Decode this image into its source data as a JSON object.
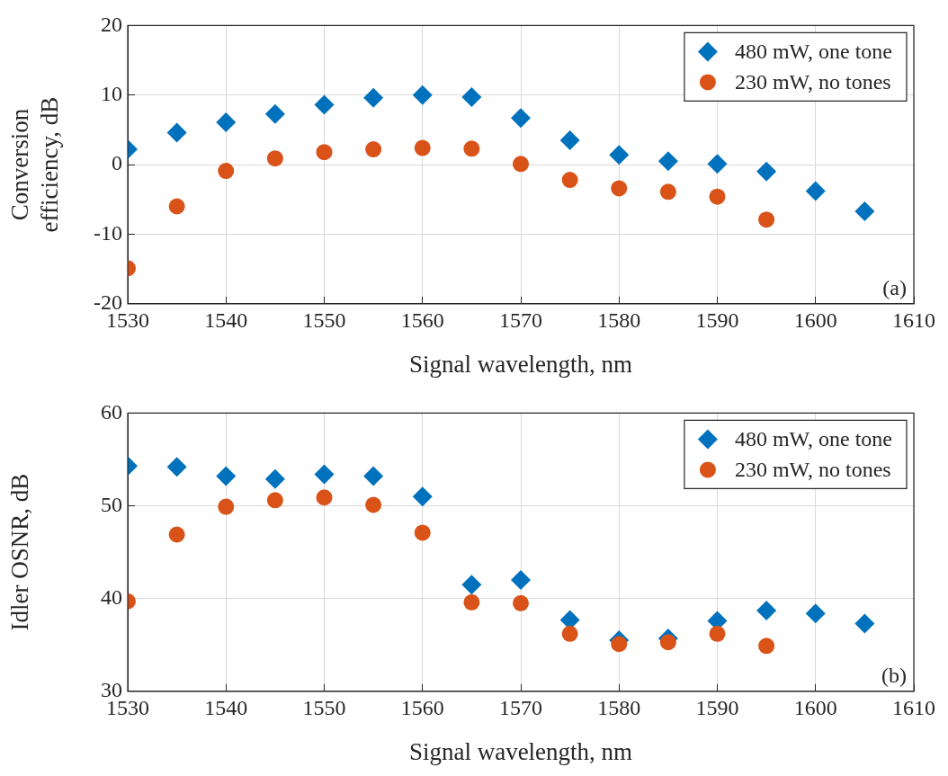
{
  "chart_data": [
    {
      "type": "scatter",
      "xlabel": "Signal wavelength, nm",
      "ylabel": "Conversion efficiency, dB",
      "x": [
        1530,
        1535,
        1540,
        1545,
        1550,
        1555,
        1560,
        1565,
        1570,
        1575,
        1580,
        1585,
        1590,
        1595,
        1600,
        1605
      ],
      "series": [
        {
          "name": "480 mW, one tone",
          "color": "#0072bd",
          "marker": "diamond",
          "values": [
            2.2,
            4.6,
            6.1,
            7.3,
            8.6,
            9.6,
            10.0,
            9.7,
            6.7,
            3.5,
            1.4,
            0.5,
            0.1,
            -1.0,
            -3.8,
            -6.7
          ]
        },
        {
          "name": "230 mW, no tones",
          "color": "#d95319",
          "marker": "circle",
          "values": [
            -14.9,
            -6.0,
            -0.9,
            0.9,
            1.8,
            2.2,
            2.4,
            2.3,
            0.1,
            -2.2,
            -3.4,
            -3.9,
            -4.6,
            -7.9,
            null,
            null
          ]
        }
      ],
      "xlim": [
        1530,
        1610
      ],
      "xticks": [
        1530,
        1540,
        1550,
        1560,
        1570,
        1580,
        1590,
        1600,
        1610
      ],
      "ylim": [
        -20,
        20
      ],
      "yticks": [
        -20,
        -10,
        0,
        10,
        20
      ],
      "grid": true,
      "legend": "top right",
      "annotations": [
        "(a)"
      ]
    },
    {
      "type": "scatter",
      "xlabel": "Signal wavelength, nm",
      "ylabel": "Idler OSNR, dB",
      "x": [
        1530,
        1535,
        1540,
        1545,
        1550,
        1555,
        1560,
        1565,
        1570,
        1575,
        1580,
        1585,
        1590,
        1595,
        1600,
        1605
      ],
      "series": [
        {
          "name": "480 mW, one tone",
          "color": "#0072bd",
          "marker": "diamond",
          "values": [
            54.3,
            54.2,
            53.2,
            52.9,
            53.4,
            53.2,
            51.0,
            41.5,
            42.0,
            37.7,
            35.5,
            35.7,
            37.6,
            38.7,
            38.4,
            37.3
          ]
        },
        {
          "name": "230 mW, no tones",
          "color": "#d95319",
          "marker": "circle",
          "values": [
            39.7,
            46.9,
            49.9,
            50.6,
            50.9,
            50.1,
            47.1,
            39.6,
            39.5,
            36.2,
            35.1,
            35.3,
            36.2,
            34.9,
            null,
            null
          ]
        }
      ],
      "xlim": [
        1530,
        1610
      ],
      "xticks": [
        1530,
        1540,
        1550,
        1560,
        1570,
        1580,
        1590,
        1600,
        1610
      ],
      "ylim": [
        30,
        60
      ],
      "yticks": [
        30,
        40,
        50,
        60
      ],
      "grid": true,
      "legend": "top right",
      "annotations": [
        "(b)"
      ]
    }
  ]
}
